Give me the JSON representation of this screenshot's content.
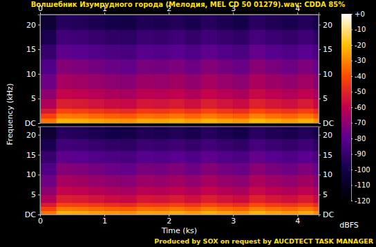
{
  "chart_data": {
    "type": "heatmap",
    "title": "Волшебник Изумрудного города (Мелодия, MEL CD 50 01279).wav: CDDA 85%",
    "x_label": "Time (ks)",
    "y_label": "Frequency (kHz)",
    "xlim": [
      0,
      4.33
    ],
    "xticks": [
      0,
      1,
      2,
      3,
      4
    ],
    "ylim": [
      0,
      22.05
    ],
    "yticks": [
      {
        "value": 0,
        "label": "DC"
      },
      5,
      10,
      15,
      20
    ],
    "grid": false,
    "x_bins": [
      0,
      0.25,
      0.5,
      0.75,
      1,
      1.25,
      1.5,
      1.75,
      2,
      2.25,
      2.5,
      2.75,
      3,
      3.25,
      3.5,
      3.75,
      4,
      4.25,
      4.33
    ],
    "y_bins": [
      0,
      1,
      2,
      3,
      5,
      7,
      10,
      13,
      16,
      19,
      22.05
    ],
    "series": [
      {
        "values": [
          [
            -33,
            -22,
            -23,
            -25,
            -27,
            -28,
            -24,
            -25,
            -23,
            -26,
            -22,
            -25,
            -27,
            -21,
            -24,
            -26,
            -23,
            -28
          ],
          [
            -43,
            -32,
            -33,
            -35,
            -37,
            -38,
            -34,
            -35,
            -33,
            -36,
            -32,
            -35,
            -37,
            -31,
            -34,
            -36,
            -33,
            -38
          ],
          [
            -53,
            -42,
            -43,
            -45,
            -47,
            -48,
            -44,
            -45,
            -43,
            -46,
            -42,
            -45,
            -47,
            -41,
            -44,
            -46,
            -43,
            -48
          ],
          [
            -63,
            -52,
            -53,
            -55,
            -57,
            -58,
            -54,
            -55,
            -53,
            -56,
            -52,
            -55,
            -57,
            -51,
            -54,
            -56,
            -53,
            -58
          ],
          [
            -70,
            -59,
            -60,
            -62,
            -64,
            -65,
            -61,
            -62,
            -60,
            -63,
            -59,
            -62,
            -64,
            -58,
            -61,
            -63,
            -60,
            -65
          ],
          [
            -76,
            -65,
            -66,
            -68,
            -70,
            -71,
            -67,
            -68,
            -66,
            -69,
            -65,
            -68,
            -70,
            -64,
            -67,
            -69,
            -66,
            -71
          ],
          [
            -83,
            -72,
            -73,
            -75,
            -77,
            -78,
            -74,
            -75,
            -73,
            -76,
            -72,
            -75,
            -77,
            -71,
            -74,
            -76,
            -73,
            -78
          ],
          [
            -90,
            -79,
            -80,
            -82,
            -84,
            -85,
            -81,
            -82,
            -80,
            -83,
            -79,
            -82,
            -84,
            -78,
            -81,
            -83,
            -80,
            -85
          ],
          [
            -98,
            -87,
            -88,
            -90,
            -92,
            -93,
            -89,
            -90,
            -88,
            -91,
            -87,
            -90,
            -92,
            -86,
            -89,
            -91,
            -88,
            -93
          ],
          [
            -106,
            -95,
            -96,
            -98,
            -100,
            -101,
            -97,
            -98,
            -96,
            -99,
            -95,
            -98,
            -100,
            -94,
            -97,
            -99,
            -96,
            -101
          ]
        ]
      },
      {
        "values": [
          [
            -33,
            -22,
            -23,
            -25,
            -27,
            -28,
            -24,
            -25,
            -23,
            -26,
            -22,
            -25,
            -27,
            -21,
            -24,
            -26,
            -23,
            -28
          ],
          [
            -43,
            -32,
            -33,
            -35,
            -37,
            -38,
            -34,
            -35,
            -33,
            -36,
            -32,
            -35,
            -37,
            -31,
            -34,
            -36,
            -33,
            -38
          ],
          [
            -53,
            -42,
            -43,
            -45,
            -47,
            -48,
            -44,
            -45,
            -43,
            -46,
            -42,
            -45,
            -47,
            -41,
            -44,
            -46,
            -43,
            -48
          ],
          [
            -63,
            -52,
            -53,
            -55,
            -57,
            -58,
            -54,
            -55,
            -53,
            -56,
            -52,
            -55,
            -57,
            -51,
            -54,
            -56,
            -53,
            -58
          ],
          [
            -70,
            -59,
            -60,
            -62,
            -64,
            -65,
            -61,
            -62,
            -60,
            -63,
            -59,
            -62,
            -64,
            -58,
            -61,
            -63,
            -60,
            -65
          ],
          [
            -76,
            -65,
            -66,
            -68,
            -70,
            -71,
            -67,
            -68,
            -66,
            -69,
            -65,
            -68,
            -70,
            -64,
            -67,
            -69,
            -66,
            -71
          ],
          [
            -83,
            -72,
            -73,
            -75,
            -77,
            -78,
            -74,
            -75,
            -73,
            -76,
            -72,
            -75,
            -77,
            -71,
            -74,
            -76,
            -73,
            -78
          ],
          [
            -90,
            -79,
            -80,
            -82,
            -84,
            -85,
            -81,
            -82,
            -80,
            -83,
            -79,
            -82,
            -84,
            -78,
            -81,
            -83,
            -80,
            -85
          ],
          [
            -98,
            -87,
            -88,
            -90,
            -92,
            -93,
            -89,
            -90,
            -88,
            -91,
            -87,
            -90,
            -92,
            -86,
            -89,
            -91,
            -88,
            -93
          ],
          [
            -106,
            -95,
            -96,
            -98,
            -100,
            -101,
            -97,
            -98,
            -96,
            -99,
            -95,
            -98,
            -100,
            -94,
            -97,
            -99,
            -96,
            -101
          ]
        ]
      }
    ],
    "colorbar": {
      "range": [
        -120,
        0
      ],
      "ticks": [
        {
          "value": 0,
          "label": "+0"
        },
        -10,
        -20,
        -30,
        -40,
        -50,
        -60,
        -70,
        -80,
        -90,
        -100,
        -110,
        -120
      ],
      "label": "dBFS",
      "colors": [
        "#000000",
        "#14004a",
        "#5a0090",
        "#c00050",
        "#ff4a00",
        "#ffc000",
        "#ffffff"
      ]
    },
    "annotations": [
      "Produced by SOX on request by AUCDTECT TASK MANAGER"
    ]
  }
}
